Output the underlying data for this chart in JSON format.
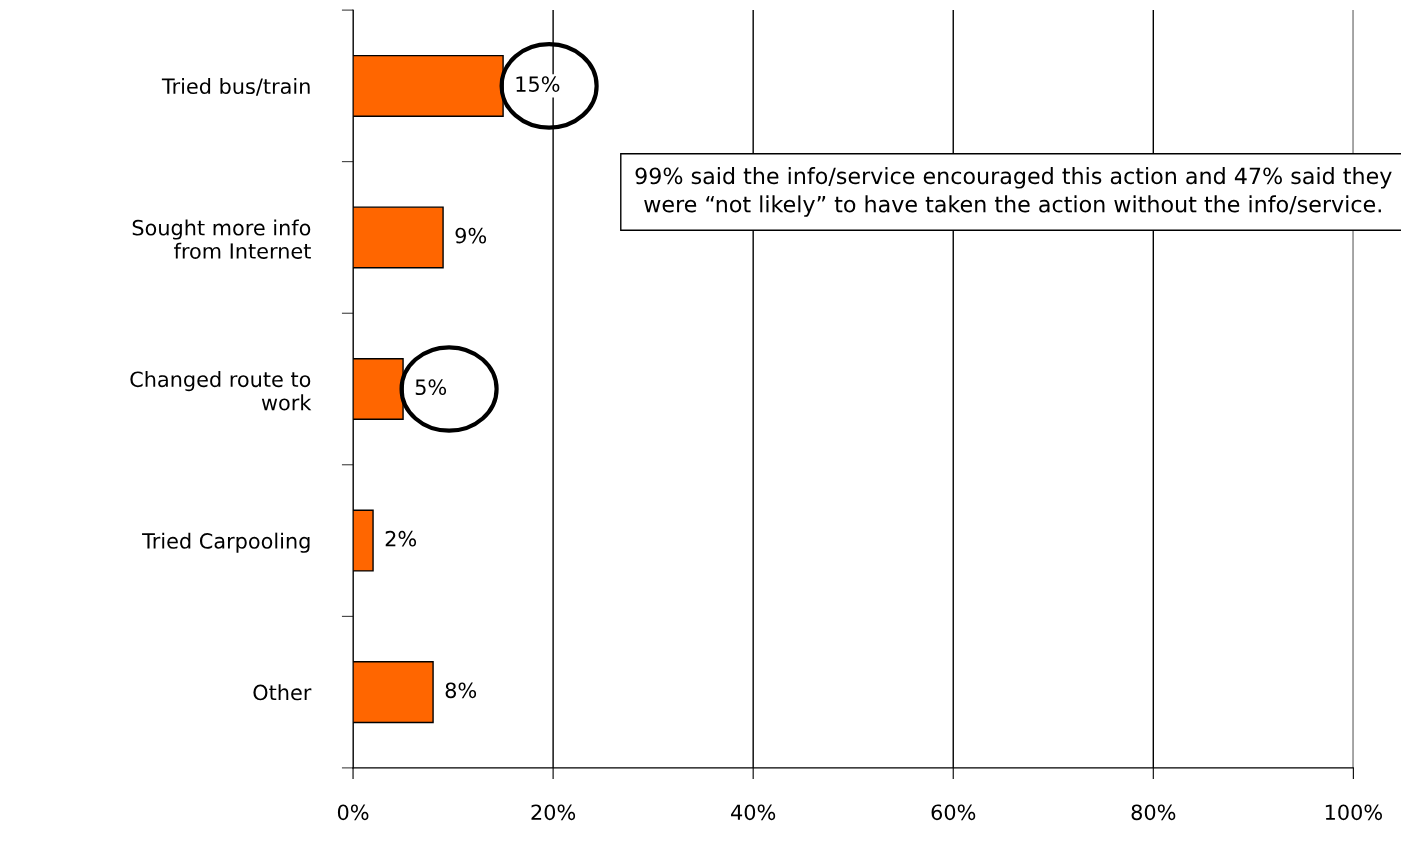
{
  "chart_data": {
    "type": "bar",
    "orientation": "horizontal",
    "categories": [
      "Tried bus/train",
      "Sought more info\nfrom Internet",
      "Changed route to\nwork",
      "Tried Carpooling",
      "Other"
    ],
    "values": [
      15,
      9,
      5,
      2,
      8
    ],
    "value_labels": [
      "15%",
      "9%",
      "5%",
      "2%",
      "8%"
    ],
    "color": "#ff6600",
    "xlim": [
      0,
      100
    ],
    "xticks": [
      {
        "value": 0,
        "label": "0%"
      },
      {
        "value": 20,
        "label": "20%"
      },
      {
        "value": 40,
        "label": "40%"
      },
      {
        "value": 60,
        "label": "60%"
      },
      {
        "value": 80,
        "label": "80%"
      },
      {
        "value": 100,
        "label": "100%"
      }
    ],
    "grid": "x",
    "annotations": [
      "99% said the info/service encouraged this action and 47% said they were “not likely” to have taken the action without the info/service."
    ]
  }
}
